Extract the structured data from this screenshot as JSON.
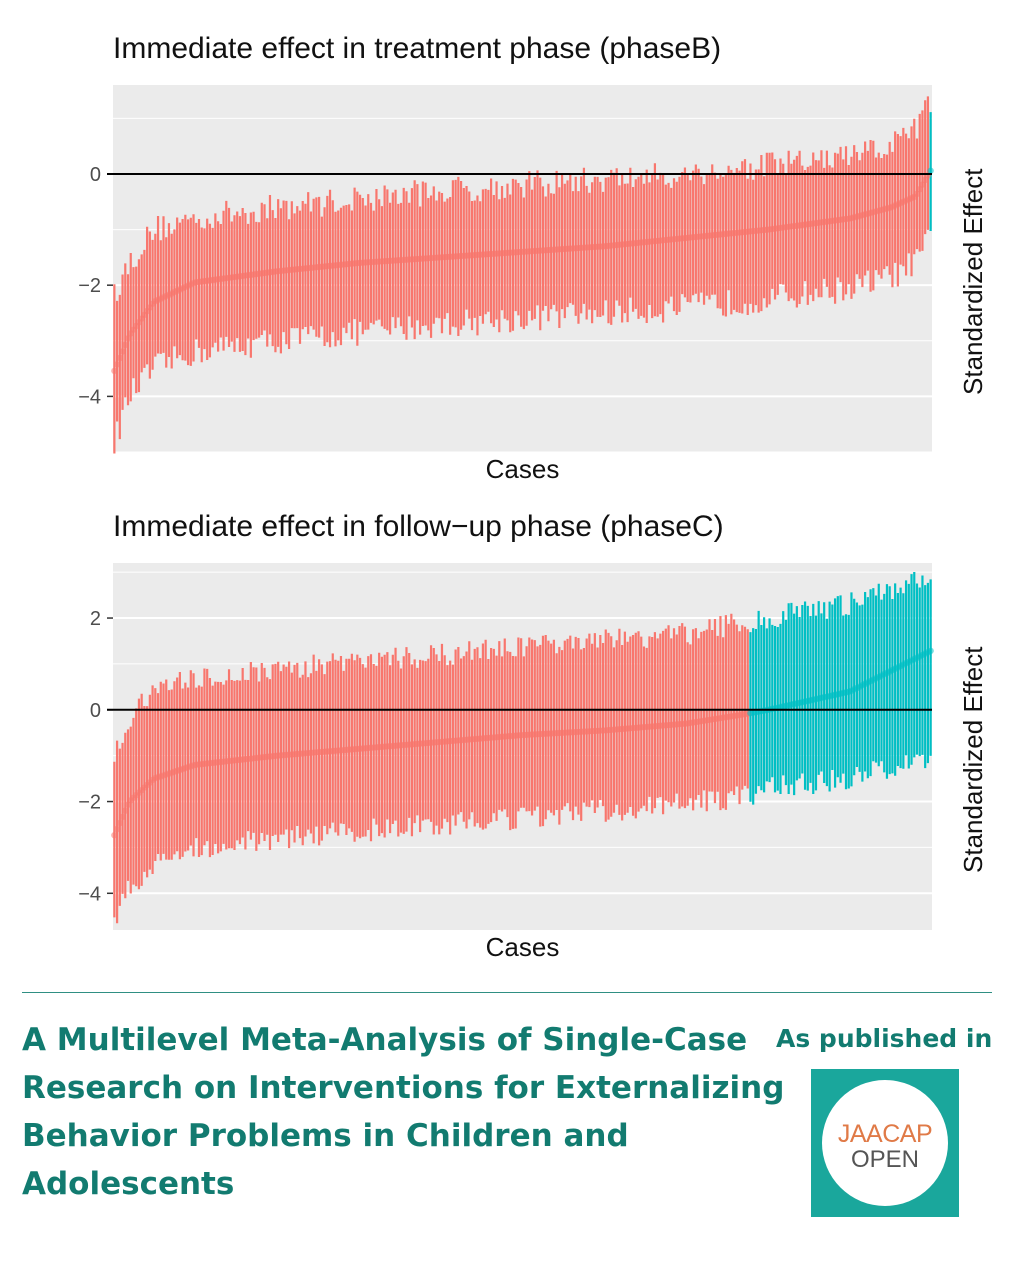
{
  "chart_data": [
    {
      "type": "error_bar",
      "title": "Immediate effect in treatment phase (phaseB)",
      "xlabel": "Cases",
      "ylabel": "Standardized Effect",
      "ylim": [
        -5.0,
        1.6
      ],
      "yticks": [
        -4,
        -2,
        0
      ],
      "ytick_labels": [
        "−4",
        "−2",
        "0"
      ],
      "reference_line": 0,
      "grid": true,
      "n_cases": 300,
      "series": [
        {
          "color": "#f8766d",
          "cases": 299
        },
        {
          "color": "#00bfc4",
          "cases": 1
        }
      ],
      "quantile_pct": [
        0,
        2,
        5,
        10,
        20,
        30,
        40,
        50,
        60,
        70,
        80,
        90,
        95,
        98,
        100
      ],
      "estimate_at_quantiles": [
        -3.6,
        -2.9,
        -2.3,
        -1.95,
        -1.75,
        -1.6,
        -1.5,
        -1.4,
        -1.3,
        -1.15,
        -1.0,
        -0.8,
        -0.6,
        -0.4,
        0.1
      ],
      "lower_at_quantiles": [
        -4.9,
        -4.0,
        -3.5,
        -3.2,
        -3.0,
        -2.85,
        -2.7,
        -2.6,
        -2.5,
        -2.4,
        -2.25,
        -2.05,
        -1.85,
        -1.6,
        -1.1
      ],
      "upper_at_quantiles": [
        -2.2,
        -1.6,
        -1.0,
        -0.8,
        -0.6,
        -0.45,
        -0.3,
        -0.2,
        -0.1,
        0.0,
        0.15,
        0.3,
        0.5,
        0.8,
        1.35
      ]
    },
    {
      "type": "error_bar",
      "title": "Immediate effect in follow−up phase (phaseC)",
      "xlabel": "Cases",
      "ylabel": "Standardized Effect",
      "ylim": [
        -4.8,
        3.2
      ],
      "yticks": [
        -4,
        -2,
        0,
        2
      ],
      "ytick_labels": [
        "−4",
        "−2",
        "0",
        "2"
      ],
      "reference_line": 0,
      "grid": true,
      "n_cases": 300,
      "series": [
        {
          "color": "#f8766d",
          "cases": 233
        },
        {
          "color": "#00bfc4",
          "cases": 67
        }
      ],
      "quantile_pct": [
        0,
        2,
        5,
        10,
        20,
        30,
        40,
        50,
        60,
        70,
        77,
        80,
        90,
        100
      ],
      "estimate_at_quantiles": [
        -2.8,
        -2.0,
        -1.5,
        -1.2,
        -1.0,
        -0.85,
        -0.7,
        -0.55,
        -0.45,
        -0.3,
        -0.1,
        0.0,
        0.4,
        1.3
      ],
      "lower_at_quantiles": [
        -4.6,
        -3.9,
        -3.4,
        -3.0,
        -2.8,
        -2.65,
        -2.5,
        -2.35,
        -2.2,
        -2.05,
        -1.9,
        -1.7,
        -1.5,
        -1.0
      ],
      "upper_at_quantiles": [
        -1.0,
        -0.2,
        0.4,
        0.7,
        0.9,
        1.05,
        1.2,
        1.35,
        1.5,
        1.65,
        1.9,
        2.0,
        2.3,
        2.9
      ]
    }
  ],
  "footer": {
    "paper_title": "A Multilevel Meta-Analysis of Single-Case Research on Interventions for Externalizing Behavior Problems in Children and Adolescents",
    "published_label": "As published in",
    "logo_line1": "JAACAP",
    "logo_line2": "OPEN"
  },
  "colors": {
    "accent": "#127b70",
    "logo_bg": "#1aa79c",
    "panel_bg": "#ebebeb",
    "series_red": "#f8766d",
    "series_teal": "#00bfc4"
  }
}
